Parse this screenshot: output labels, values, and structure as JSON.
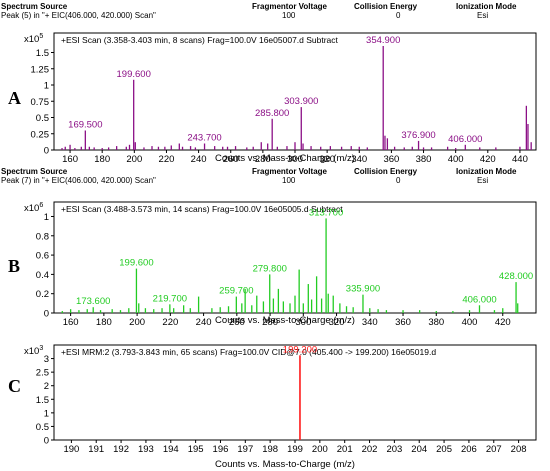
{
  "colors": {
    "A": "#8b0f86",
    "B": "#22cc22",
    "C": "#ff1a1a"
  },
  "chart_data": [
    {
      "panel": "A",
      "type": "bar",
      "header": {
        "col1_label": "Spectrum Source",
        "col1_value": "Peak (5) in \"+ EIC(406.000, 420.000) Scan\"",
        "col2_label": "Fragmentor Voltage",
        "col2_value": "100",
        "col3_label": "Collision Energy",
        "col3_value": "0",
        "col4_label": "Ionization Mode",
        "col4_value": "Esi"
      },
      "title": "+ESI Scan (3.358-3.403 min, 8 scans) Frag=100.0V 16e05007.d  Subtract",
      "y_multiplier": "x10 5",
      "xlabel": "Counts vs. Mass-to-Charge (m/z)",
      "xlim": [
        150,
        450
      ],
      "ylim": [
        0,
        1.8
      ],
      "xticks": [
        "160",
        "180",
        "200",
        "220",
        "240",
        "260",
        "280",
        "300",
        "320",
        "340",
        "360",
        "380",
        "400",
        "420",
        "440"
      ],
      "yticks": [
        "0",
        "0.25",
        "0.5",
        "0.75",
        "1",
        "1.25",
        "1.5"
      ],
      "peaks": [
        {
          "x": 155,
          "y": 0.03
        },
        {
          "x": 157,
          "y": 0.05
        },
        {
          "x": 160,
          "y": 0.08
        },
        {
          "x": 163,
          "y": 0.03
        },
        {
          "x": 167,
          "y": 0.05
        },
        {
          "x": 169.5,
          "y": 0.3
        },
        {
          "x": 172,
          "y": 0.05
        },
        {
          "x": 175,
          "y": 0.04
        },
        {
          "x": 180,
          "y": 0.03
        },
        {
          "x": 184,
          "y": 0.04
        },
        {
          "x": 189,
          "y": 0.06
        },
        {
          "x": 195,
          "y": 0.05
        },
        {
          "x": 197,
          "y": 0.08
        },
        {
          "x": 199.6,
          "y": 1.08
        },
        {
          "x": 200.6,
          "y": 0.12
        },
        {
          "x": 206,
          "y": 0.04
        },
        {
          "x": 211,
          "y": 0.06
        },
        {
          "x": 215,
          "y": 0.05
        },
        {
          "x": 219,
          "y": 0.05
        },
        {
          "x": 223,
          "y": 0.07
        },
        {
          "x": 228,
          "y": 0.1
        },
        {
          "x": 230,
          "y": 0.05
        },
        {
          "x": 235,
          "y": 0.06
        },
        {
          "x": 238,
          "y": 0.04
        },
        {
          "x": 243.7,
          "y": 0.1
        },
        {
          "x": 250,
          "y": 0.06
        },
        {
          "x": 255,
          "y": 0.05
        },
        {
          "x": 258,
          "y": 0.05
        },
        {
          "x": 263,
          "y": 0.06
        },
        {
          "x": 270,
          "y": 0.04
        },
        {
          "x": 274,
          "y": 0.05
        },
        {
          "x": 279,
          "y": 0.12
        },
        {
          "x": 283,
          "y": 0.1
        },
        {
          "x": 285.8,
          "y": 0.48
        },
        {
          "x": 289,
          "y": 0.05
        },
        {
          "x": 295,
          "y": 0.06
        },
        {
          "x": 300,
          "y": 0.12
        },
        {
          "x": 303.9,
          "y": 0.66
        },
        {
          "x": 305,
          "y": 0.1
        },
        {
          "x": 310,
          "y": 0.06
        },
        {
          "x": 316,
          "y": 0.05
        },
        {
          "x": 322,
          "y": 0.06
        },
        {
          "x": 329,
          "y": 0.05
        },
        {
          "x": 335,
          "y": 0.06
        },
        {
          "x": 340,
          "y": 0.05
        },
        {
          "x": 345,
          "y": 0.04
        },
        {
          "x": 354.9,
          "y": 1.6
        },
        {
          "x": 356,
          "y": 0.22
        },
        {
          "x": 357.5,
          "y": 0.18
        },
        {
          "x": 362,
          "y": 0.05
        },
        {
          "x": 368,
          "y": 0.04
        },
        {
          "x": 373,
          "y": 0.05
        },
        {
          "x": 376.9,
          "y": 0.14
        },
        {
          "x": 380,
          "y": 0.04
        },
        {
          "x": 385,
          "y": 0.04
        },
        {
          "x": 395,
          "y": 0.05
        },
        {
          "x": 400,
          "y": 0.03
        },
        {
          "x": 406,
          "y": 0.08
        },
        {
          "x": 415,
          "y": 0.04
        },
        {
          "x": 425,
          "y": 0.04
        },
        {
          "x": 440,
          "y": 0.05
        },
        {
          "x": 444,
          "y": 0.68
        },
        {
          "x": 445,
          "y": 0.4
        },
        {
          "x": 447,
          "y": 0.12
        }
      ],
      "labels": [
        {
          "text": "169.500",
          "x": 169.5,
          "y": 0.3
        },
        {
          "text": "199.600",
          "x": 199.6,
          "y": 1.08
        },
        {
          "text": "243.700",
          "x": 243.7,
          "y": 0.1
        },
        {
          "text": "285.800",
          "x": 285.8,
          "y": 0.48
        },
        {
          "text": "303.900",
          "x": 303.9,
          "y": 0.66
        },
        {
          "text": "354.900",
          "x": 354.9,
          "y": 1.6
        },
        {
          "text": "376.900",
          "x": 376.9,
          "y": 0.14
        },
        {
          "text": "406.000",
          "x": 406.0,
          "y": 0.08
        }
      ]
    },
    {
      "panel": "B",
      "type": "bar",
      "header": {
        "col1_label": "Spectrum Source",
        "col1_value": "Peak (7) in \"+ EIC(406.000, 420.000) Scan\"",
        "col2_label": "Fragmentor Voltage",
        "col2_value": "100",
        "col3_label": "Collision Energy",
        "col3_value": "0",
        "col4_label": "Ionization Mode",
        "col4_value": "Esi"
      },
      "title": "+ESI Scan (3.488-3.573 min, 14 scans) Frag=100.0V 16e05005.d  Subtract",
      "y_multiplier": "x10 6",
      "xlabel": "Counts vs. Mass-to-Charge (m/z)",
      "xlim": [
        150,
        440
      ],
      "ylim": [
        0,
        1.15
      ],
      "xticks": [
        "160",
        "180",
        "200",
        "220",
        "240",
        "260",
        "280",
        "300",
        "320",
        "340",
        "360",
        "380",
        "400",
        "420"
      ],
      "yticks": [
        "0",
        "0.2",
        "0.4",
        "0.6",
        "0.8",
        "1"
      ],
      "peaks": [
        {
          "x": 155,
          "y": 0.02
        },
        {
          "x": 160,
          "y": 0.04
        },
        {
          "x": 165,
          "y": 0.03
        },
        {
          "x": 170,
          "y": 0.04
        },
        {
          "x": 173.6,
          "y": 0.06
        },
        {
          "x": 178,
          "y": 0.03
        },
        {
          "x": 185,
          "y": 0.04
        },
        {
          "x": 190,
          "y": 0.03
        },
        {
          "x": 195,
          "y": 0.05
        },
        {
          "x": 199.6,
          "y": 0.46
        },
        {
          "x": 201,
          "y": 0.1
        },
        {
          "x": 205,
          "y": 0.05
        },
        {
          "x": 210,
          "y": 0.04
        },
        {
          "x": 215,
          "y": 0.05
        },
        {
          "x": 219.7,
          "y": 0.09
        },
        {
          "x": 222,
          "y": 0.05
        },
        {
          "x": 228,
          "y": 0.08
        },
        {
          "x": 232,
          "y": 0.05
        },
        {
          "x": 237,
          "y": 0.17
        },
        {
          "x": 245,
          "y": 0.05
        },
        {
          "x": 250,
          "y": 0.06
        },
        {
          "x": 255,
          "y": 0.07
        },
        {
          "x": 259.7,
          "y": 0.17
        },
        {
          "x": 263,
          "y": 0.1
        },
        {
          "x": 265,
          "y": 0.25
        },
        {
          "x": 269,
          "y": 0.08
        },
        {
          "x": 272,
          "y": 0.18
        },
        {
          "x": 276,
          "y": 0.12
        },
        {
          "x": 279.8,
          "y": 0.4
        },
        {
          "x": 282,
          "y": 0.15
        },
        {
          "x": 285,
          "y": 0.25
        },
        {
          "x": 288,
          "y": 0.12
        },
        {
          "x": 292,
          "y": 0.1
        },
        {
          "x": 295,
          "y": 0.18
        },
        {
          "x": 297.5,
          "y": 0.45
        },
        {
          "x": 300,
          "y": 0.1
        },
        {
          "x": 303,
          "y": 0.3
        },
        {
          "x": 305,
          "y": 0.14
        },
        {
          "x": 308,
          "y": 0.38
        },
        {
          "x": 311,
          "y": 0.15
        },
        {
          "x": 313.7,
          "y": 0.98
        },
        {
          "x": 315,
          "y": 0.2
        },
        {
          "x": 318,
          "y": 0.18
        },
        {
          "x": 322,
          "y": 0.1
        },
        {
          "x": 326,
          "y": 0.07
        },
        {
          "x": 330,
          "y": 0.06
        },
        {
          "x": 335.9,
          "y": 0.19
        },
        {
          "x": 340,
          "y": 0.05
        },
        {
          "x": 345,
          "y": 0.04
        },
        {
          "x": 350,
          "y": 0.03
        },
        {
          "x": 360,
          "y": 0.03
        },
        {
          "x": 370,
          "y": 0.03
        },
        {
          "x": 380,
          "y": 0.02
        },
        {
          "x": 390,
          "y": 0.02
        },
        {
          "x": 400,
          "y": 0.03
        },
        {
          "x": 406,
          "y": 0.08
        },
        {
          "x": 415,
          "y": 0.03
        },
        {
          "x": 420,
          "y": 0.05
        },
        {
          "x": 428,
          "y": 0.32
        },
        {
          "x": 429,
          "y": 0.1
        }
      ],
      "labels": [
        {
          "text": "173.600",
          "x": 173.6,
          "y": 0.06
        },
        {
          "text": "199.600",
          "x": 199.6,
          "y": 0.46
        },
        {
          "text": "219.700",
          "x": 219.7,
          "y": 0.09
        },
        {
          "text": "259.700",
          "x": 259.7,
          "y": 0.17
        },
        {
          "text": "279.800",
          "x": 279.8,
          "y": 0.4
        },
        {
          "text": "313.700",
          "x": 313.7,
          "y": 0.98
        },
        {
          "text": "335.900",
          "x": 335.9,
          "y": 0.19
        },
        {
          "text": "406.000",
          "x": 406.0,
          "y": 0.08
        },
        {
          "text": "428.000",
          "x": 428.0,
          "y": 0.32
        }
      ]
    },
    {
      "panel": "C",
      "type": "bar",
      "title": "+ESI MRM:2 (3.793-3.843 min, 65 scans) Frag=100.0V CID@7.0 (405.400 -> 199.200) 16e05019.d",
      "y_multiplier": "x10 3",
      "xlabel": "Counts vs. Mass-to-Charge (m/z)",
      "xlim": [
        189.3,
        208.7
      ],
      "ylim": [
        0,
        3.5
      ],
      "xticks": [
        "190",
        "191",
        "192",
        "193",
        "194",
        "195",
        "196",
        "197",
        "198",
        "199",
        "200",
        "201",
        "202",
        "203",
        "204",
        "205",
        "206",
        "207",
        "208"
      ],
      "yticks": [
        "0",
        "0.5",
        "1",
        "1.5",
        "2",
        "2.5",
        "3"
      ],
      "peaks": [
        {
          "x": 199.2,
          "y": 3.12
        }
      ],
      "labels": [
        {
          "text": "199.200",
          "x": 199.2,
          "y": 3.12
        }
      ]
    }
  ]
}
